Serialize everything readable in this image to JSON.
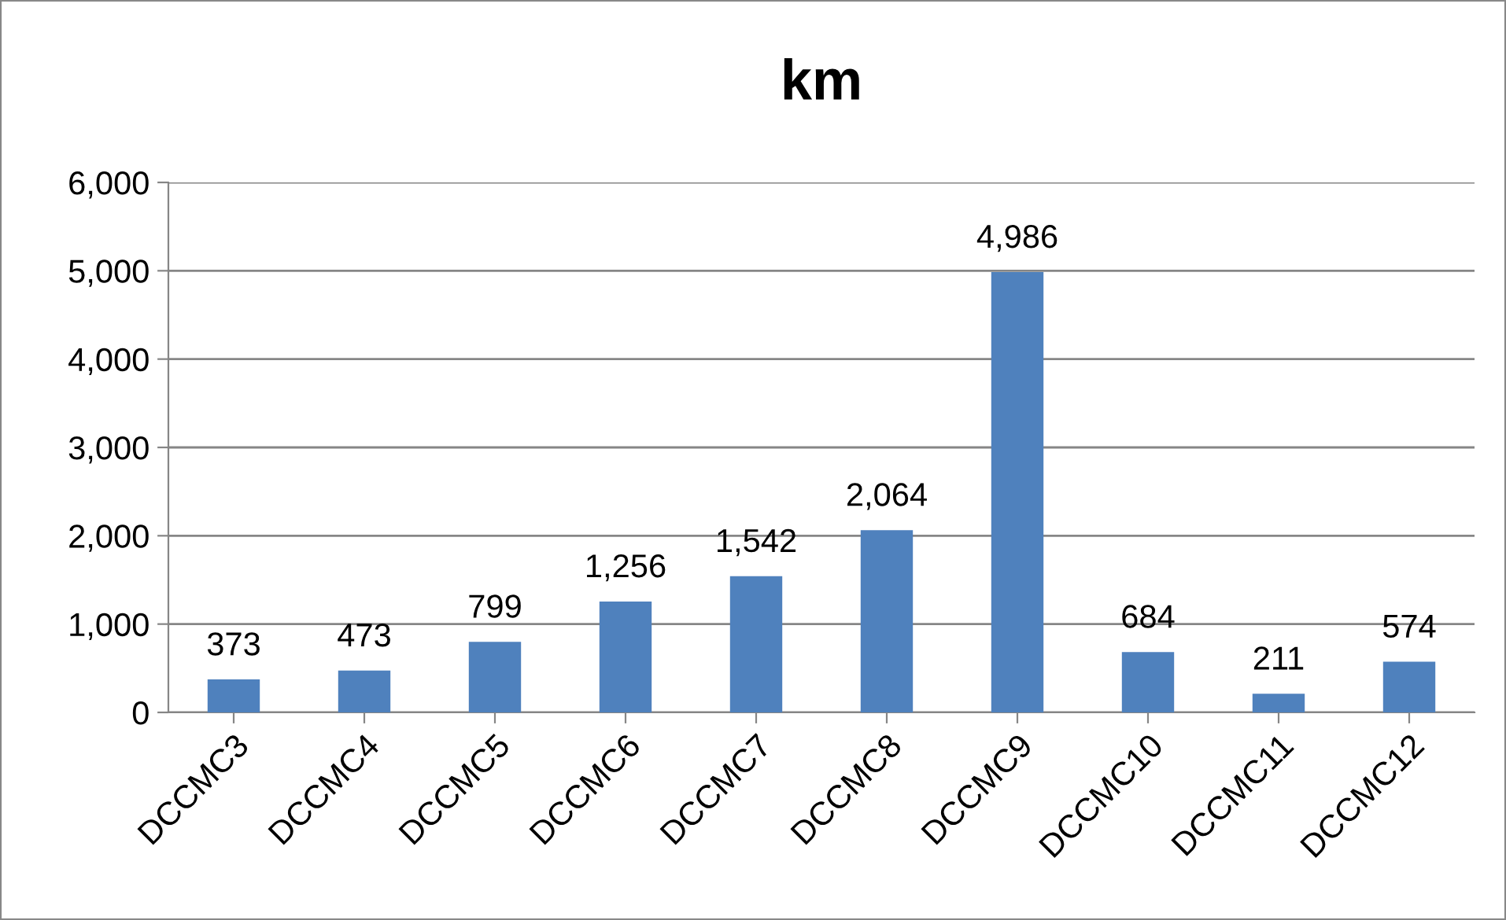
{
  "chart_data": {
    "type": "bar",
    "title": "km",
    "categories": [
      "DCCMC3",
      "DCCMC4",
      "DCCMC5",
      "DCCMC6",
      "DCCMC7",
      "DCCMC8",
      "DCCMC9",
      "DCCMC10",
      "DCCMC11",
      "DCCMC12"
    ],
    "values": [
      373,
      473,
      799,
      1256,
      1542,
      2064,
      4986,
      684,
      211,
      574
    ],
    "value_labels": [
      "373",
      "473",
      "799",
      "1,256",
      "1,542",
      "2,064",
      "4,986",
      "684",
      "211",
      "574"
    ],
    "color": "#4f81bd",
    "ylim": [
      0,
      6000
    ],
    "yticks": [
      0,
      {
        "value": 1000,
        "label": "1,000"
      },
      {
        "value": 2000,
        "label": "2,000"
      },
      {
        "value": 3000,
        "label": "3,000"
      },
      {
        "value": 4000,
        "label": "4,000"
      },
      {
        "value": 5000,
        "label": "5,000"
      },
      {
        "value": 6000,
        "label": "6,000"
      }
    ],
    "grid": "y",
    "legend": false
  }
}
